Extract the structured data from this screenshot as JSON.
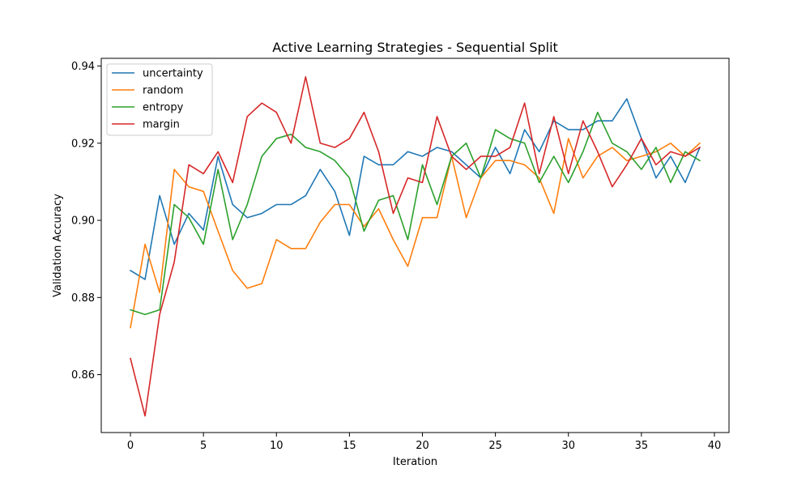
{
  "chart_data": {
    "type": "line",
    "title": "Active Learning Strategies - Sequential Split",
    "xlabel": "Iteration",
    "ylabel": "Validation Accuracy",
    "xlim": [
      -2,
      41
    ],
    "ylim": [
      0.845,
      0.942
    ],
    "xticks": [
      0,
      5,
      10,
      15,
      20,
      25,
      30,
      35,
      40
    ],
    "yticks": [
      0.86,
      0.88,
      0.9,
      0.92,
      0.94
    ],
    "ytick_labels": [
      "0.86",
      "0.88",
      "0.90",
      "0.92",
      "0.94"
    ],
    "xtick_labels": [
      "0",
      "5",
      "10",
      "15",
      "20",
      "25",
      "30",
      "35",
      "40"
    ],
    "grid": false,
    "legend_position": "top-left",
    "x": [
      0,
      1,
      2,
      3,
      4,
      5,
      6,
      7,
      8,
      9,
      10,
      11,
      12,
      13,
      14,
      15,
      16,
      17,
      18,
      19,
      20,
      21,
      22,
      23,
      24,
      25,
      26,
      27,
      28,
      29,
      30,
      31,
      32,
      33,
      34,
      35,
      36,
      37,
      38,
      39
    ],
    "series": [
      {
        "name": "uncertainty",
        "color": "#1f77b4",
        "values": [
          0.887,
          0.8847,
          0.9064,
          0.8938,
          0.9018,
          0.8975,
          0.9166,
          0.9041,
          0.9007,
          0.9018,
          0.9041,
          0.9041,
          0.9064,
          0.9132,
          0.9075,
          0.8961,
          0.9166,
          0.9144,
          0.9144,
          0.9178,
          0.9166,
          0.9189,
          0.9178,
          0.9144,
          0.911,
          0.9189,
          0.9121,
          0.9235,
          0.9178,
          0.9258,
          0.9235,
          0.9235,
          0.9258,
          0.9258,
          0.9315,
          0.9212,
          0.911,
          0.9166,
          0.9098,
          0.9189
        ]
      },
      {
        "name": "random",
        "color": "#ff7f0e",
        "values": [
          0.8722,
          0.8938,
          0.8813,
          0.9132,
          0.9087,
          0.9075,
          0.8972,
          0.887,
          0.8824,
          0.8836,
          0.895,
          0.8927,
          0.8927,
          0.8995,
          0.9041,
          0.9041,
          0.8984,
          0.903,
          0.895,
          0.8881,
          0.9007,
          0.9007,
          0.9166,
          0.9007,
          0.911,
          0.9155,
          0.9155,
          0.9144,
          0.911,
          0.9018,
          0.9212,
          0.911,
          0.9166,
          0.9189,
          0.9155,
          0.9166,
          0.9178,
          0.92,
          0.9166,
          0.92
        ]
      },
      {
        "name": "entropy",
        "color": "#2ca02c",
        "values": [
          0.8768,
          0.8756,
          0.8768,
          0.9041,
          0.9007,
          0.8938,
          0.9132,
          0.895,
          0.9041,
          0.9166,
          0.9212,
          0.9223,
          0.9189,
          0.9178,
          0.9155,
          0.911,
          0.8972,
          0.9052,
          0.9064,
          0.895,
          0.9144,
          0.9041,
          0.9166,
          0.92,
          0.911,
          0.9235,
          0.9212,
          0.92,
          0.9098,
          0.9166,
          0.9098,
          0.9178,
          0.928,
          0.92,
          0.9178,
          0.9132,
          0.9189,
          0.9098,
          0.9178,
          0.9155
        ]
      },
      {
        "name": "margin",
        "color": "#d62728",
        "values": [
          0.8642,
          0.8493,
          0.8756,
          0.8892,
          0.9144,
          0.9121,
          0.9178,
          0.9098,
          0.9269,
          0.9304,
          0.928,
          0.92,
          0.9372,
          0.92,
          0.9189,
          0.9212,
          0.928,
          0.9178,
          0.9018,
          0.911,
          0.9098,
          0.9269,
          0.9166,
          0.9132,
          0.9166,
          0.9166,
          0.9189,
          0.9304,
          0.9121,
          0.9269,
          0.9121,
          0.9258,
          0.9178,
          0.9087,
          0.9144,
          0.9212,
          0.9144,
          0.9178,
          0.9166,
          0.9189
        ]
      }
    ]
  }
}
